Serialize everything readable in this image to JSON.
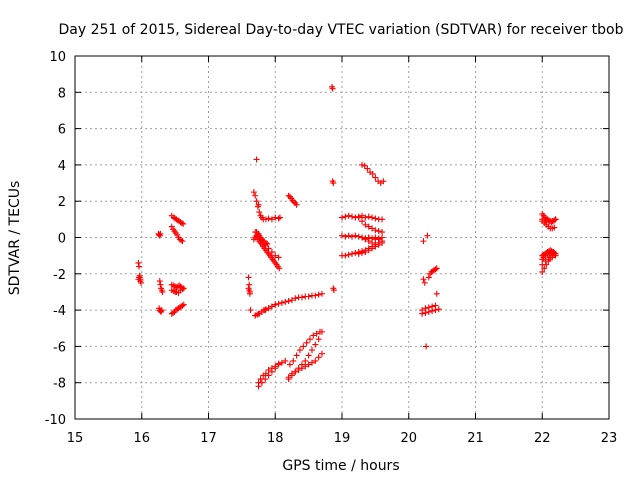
{
  "chart_data": {
    "type": "scatter",
    "title": "Day 251 of 2015, Sidereal Day-to-day VTEC variation (SDTVAR) for receiver tbob",
    "xlabel": "GPS time / hours",
    "ylabel": "SDTVAR / TECUs",
    "xlim": [
      15,
      23
    ],
    "ylim": [
      -10,
      10
    ],
    "xticks": [
      "15",
      "16",
      "17",
      "18",
      "19",
      "20",
      "21",
      "22",
      "23"
    ],
    "yticks": [
      "-10",
      "-8",
      "-6",
      "-4",
      "-2",
      "0",
      "2",
      "4",
      "6",
      "8",
      "10"
    ],
    "grid": true,
    "marker": "+",
    "color": "#ff0000",
    "series": [
      {
        "name": "SDTVAR",
        "x": [
          15.95,
          15.96,
          15.97,
          15.98,
          15.95,
          15.96,
          15.97,
          15.98,
          15.99,
          16.25,
          16.26,
          16.27,
          16.28,
          16.27,
          16.28,
          16.29,
          16.3,
          16.31,
          16.26,
          16.27,
          16.28,
          16.29,
          16.3,
          16.45,
          16.48,
          16.5,
          16.52,
          16.54,
          16.56,
          16.58,
          16.6,
          16.62,
          16.45,
          16.47,
          16.49,
          16.51,
          16.53,
          16.55,
          16.57,
          16.59,
          16.61,
          16.45,
          16.48,
          16.5,
          16.52,
          16.54,
          16.56,
          16.58,
          16.6,
          16.45,
          16.47,
          16.49,
          16.51,
          16.53,
          16.55,
          16.57,
          16.59,
          16.61,
          16.63,
          16.45,
          16.48,
          16.5,
          16.52,
          16.55,
          16.58,
          16.61,
          16.63,
          17.6,
          17.61,
          17.62,
          17.6,
          17.61,
          17.62,
          17.63,
          17.68,
          17.7,
          17.72,
          17.74,
          17.76,
          17.78,
          17.8,
          17.82,
          17.86,
          17.9,
          17.95,
          18.0,
          18.05,
          18.07,
          17.68,
          17.7,
          17.72,
          17.74,
          17.76,
          17.78,
          17.8,
          17.83,
          17.86,
          17.88,
          17.72,
          17.74,
          17.76,
          17.78,
          17.8,
          17.82,
          17.75,
          17.8,
          17.85,
          17.9,
          17.95,
          18.0,
          18.05,
          17.7,
          17.75,
          17.8,
          17.85,
          17.9,
          17.95,
          18.0,
          18.05,
          18.1,
          18.15,
          18.2,
          18.25,
          17.7,
          17.73,
          17.76,
          17.8,
          17.83,
          17.86,
          17.9,
          17.95,
          18.0,
          17.75,
          17.8,
          17.85,
          17.9,
          17.95,
          18.0,
          18.05,
          18.1,
          18.15,
          17.75,
          17.78,
          17.82,
          17.86,
          17.9,
          17.95,
          18.0,
          18.05,
          17.72,
          17.75,
          17.7,
          17.72,
          17.74,
          17.76,
          17.78,
          17.8,
          17.82,
          17.84,
          17.86,
          17.88,
          17.9,
          17.92,
          17.94,
          17.96,
          17.98,
          18.0,
          18.02,
          18.04,
          18.06,
          18.2,
          18.22,
          18.24,
          18.26,
          18.28,
          18.3,
          18.32,
          18.3,
          18.35,
          18.4,
          18.45,
          18.5,
          18.55,
          18.6,
          18.65,
          18.7,
          18.2,
          18.25,
          18.3,
          18.35,
          18.4,
          18.45,
          18.5,
          18.55,
          18.6,
          18.65,
          18.7,
          18.2,
          18.25,
          18.3,
          18.35,
          18.4,
          18.45,
          18.5,
          18.55,
          18.6,
          18.65,
          18.7,
          18.22,
          18.27,
          18.32,
          18.37,
          18.42,
          18.47,
          18.52,
          18.57,
          18.62,
          18.67,
          18.85,
          18.86,
          18.86,
          18.87,
          18.87,
          18.88,
          19.0,
          19.05,
          19.1,
          19.15,
          19.2,
          19.25,
          19.3,
          19.35,
          19.4,
          19.45,
          19.5,
          19.55,
          19.6,
          19.0,
          19.05,
          19.1,
          19.15,
          19.2,
          19.25,
          19.3,
          19.35,
          19.4,
          19.45,
          19.5,
          19.55,
          19.6,
          19.25,
          19.3,
          19.35,
          19.4,
          19.45,
          19.5,
          19.55,
          19.6,
          19.3,
          19.35,
          19.4,
          19.45,
          19.5,
          19.55,
          19.6,
          19.3,
          19.35,
          19.4,
          19.45,
          19.5,
          19.55,
          19.6,
          19.0,
          19.05,
          19.1,
          19.15,
          19.2,
          19.25,
          19.3,
          19.35,
          19.4,
          19.45,
          19.5,
          19.55,
          19.25,
          19.3,
          19.35,
          19.4,
          19.45,
          19.5,
          19.55,
          19.6,
          19.3,
          19.34,
          19.38,
          19.42,
          19.46,
          19.5,
          19.54,
          19.58,
          19.62,
          20.22,
          20.28,
          20.22,
          20.24,
          20.3,
          20.32,
          20.34,
          20.36,
          20.38,
          20.4,
          20.42,
          20.2,
          20.25,
          20.3,
          20.35,
          20.4,
          20.2,
          20.25,
          20.3,
          20.35,
          20.4,
          20.45,
          20.42,
          20.26,
          22.0,
          22.02,
          22.04,
          22.06,
          22.08,
          22.1,
          22.12,
          22.14,
          22.16,
          22.18,
          22.2,
          22.0,
          22.03,
          22.06,
          22.09,
          22.12,
          22.15,
          22.18,
          22.0,
          22.05,
          22.1,
          22.15,
          22.2,
          22.0,
          22.02,
          22.04,
          22.06,
          22.08,
          22.1,
          22.12,
          22.14,
          22.16,
          22.18,
          22.2,
          22.0,
          22.03,
          22.06,
          22.09,
          22.12,
          22.15,
          22.18,
          22.0,
          22.05,
          22.1,
          22.15,
          22.2,
          22.0,
          22.02,
          22.05,
          22.08,
          22.11,
          22.14,
          22.17
        ],
        "y": [
          -1.4,
          -1.6,
          -2.2,
          -2.4,
          -2.3,
          -2.2,
          -2.1,
          -2.3,
          -2.5,
          0.2,
          0.15,
          0.1,
          0.2,
          -2.4,
          -2.6,
          -2.8,
          -2.9,
          -3.0,
          -3.9,
          -4.0,
          -4.05,
          -4.1,
          -4.0,
          1.2,
          1.1,
          1.05,
          1.0,
          0.95,
          0.9,
          0.85,
          0.8,
          0.75,
          0.6,
          0.45,
          0.35,
          0.25,
          0.15,
          0.0,
          -0.1,
          -0.15,
          -0.2,
          -2.6,
          -2.65,
          -2.7,
          -2.75,
          -2.7,
          -2.65,
          -2.7,
          -2.75,
          -4.2,
          -4.15,
          -4.1,
          -4.0,
          -3.95,
          -3.9,
          -3.85,
          -3.8,
          -3.75,
          -3.7,
          -2.9,
          -2.95,
          -3.0,
          -3.0,
          -3.05,
          -2.9,
          -2.85,
          -2.8,
          -2.2,
          -2.6,
          -3.0,
          -2.8,
          -2.9,
          -3.1,
          -4.0,
          2.5,
          2.3,
          2.0,
          1.7,
          1.4,
          1.2,
          1.1,
          1.0,
          1.0,
          1.05,
          1.0,
          1.1,
          1.05,
          1.1,
          -0.1,
          0.0,
          0.1,
          0.05,
          0.0,
          -0.1,
          -0.15,
          -0.2,
          -0.3,
          -0.35,
          0.3,
          0.2,
          0.1,
          0.0,
          -0.1,
          -0.2,
          0.2,
          -0.1,
          -0.4,
          -0.6,
          -0.8,
          -1.0,
          -1.1,
          -4.3,
          -4.2,
          -4.1,
          -4.0,
          -3.9,
          -3.8,
          -3.7,
          -3.65,
          -3.6,
          -3.55,
          -3.5,
          -3.45,
          -4.3,
          -4.25,
          -4.2,
          -4.1,
          -4.0,
          -3.95,
          -3.9,
          -3.8,
          -3.7,
          -8.2,
          -8.0,
          -7.8,
          -7.6,
          -7.4,
          -7.2,
          -7.0,
          -6.9,
          -6.8,
          -8.0,
          -7.8,
          -7.6,
          -7.5,
          -7.3,
          -7.2,
          -7.1,
          -6.95,
          4.3,
          1.8,
          0.3,
          0.1,
          -0.1,
          -0.2,
          -0.3,
          -0.4,
          -0.5,
          -0.6,
          -0.7,
          -0.8,
          -0.9,
          -1.0,
          -1.1,
          -1.2,
          -1.3,
          -1.4,
          -1.5,
          -1.6,
          -1.7,
          2.3,
          2.25,
          2.15,
          2.05,
          1.95,
          1.9,
          1.8,
          -3.35,
          -3.3,
          -3.3,
          -3.25,
          -3.25,
          -3.2,
          -3.2,
          -3.15,
          -3.1,
          -7.8,
          -7.6,
          -7.4,
          -7.2,
          -7.0,
          -6.8,
          -6.5,
          -6.2,
          -5.9,
          -5.6,
          -5.2,
          -7.7,
          -7.5,
          -7.4,
          -7.3,
          -7.2,
          -7.1,
          -7.0,
          -6.9,
          -6.8,
          -6.6,
          -6.4,
          -7.0,
          -6.8,
          -6.5,
          -6.2,
          -6.0,
          -5.8,
          -5.6,
          -5.4,
          -5.3,
          -5.2,
          8.3,
          8.2,
          3.1,
          3.0,
          -2.8,
          -2.9,
          1.1,
          1.15,
          1.2,
          1.15,
          1.1,
          1.15,
          1.2,
          1.1,
          1.15,
          1.1,
          1.05,
          1.0,
          1.0,
          -1.0,
          -1.0,
          -0.95,
          -0.9,
          -0.85,
          -0.8,
          -0.75,
          -0.7,
          -0.6,
          -0.5,
          -0.4,
          -0.3,
          -0.2,
          1.1,
          0.9,
          0.7,
          0.6,
          0.5,
          0.4,
          0.35,
          0.3,
          0.0,
          -0.1,
          -0.2,
          -0.3,
          -0.4,
          -0.3,
          -0.2,
          0.0,
          -0.05,
          0.0,
          -0.05,
          0.0,
          -0.05,
          0.0,
          0.1,
          0.05,
          0.1,
          0.05,
          0.1,
          0.05,
          0.0,
          -0.05,
          0.0,
          -0.05,
          -0.1,
          -0.1,
          -0.9,
          -0.85,
          -0.8,
          -0.7,
          -0.6,
          -0.5,
          -0.4,
          -0.3,
          4.0,
          3.95,
          3.8,
          3.6,
          3.5,
          3.3,
          3.1,
          3.0,
          3.1,
          -0.2,
          0.1,
          -2.3,
          -2.5,
          -2.2,
          -2.0,
          -1.9,
          -1.85,
          -1.8,
          -1.75,
          -1.7,
          -4.0,
          -3.9,
          -3.85,
          -3.8,
          -3.75,
          -4.2,
          -4.15,
          -4.1,
          -4.05,
          -4.0,
          -3.95,
          -3.1,
          -6.0,
          1.3,
          1.2,
          1.1,
          1.05,
          1.0,
          0.95,
          0.9,
          0.85,
          0.9,
          0.95,
          1.0,
          0.9,
          0.8,
          0.7,
          0.6,
          0.5,
          0.5,
          0.55,
          1.0,
          0.9,
          0.85,
          0.9,
          1.0,
          -1.0,
          -0.95,
          -0.9,
          -0.85,
          -0.8,
          -0.75,
          -0.7,
          -0.75,
          -0.8,
          -0.85,
          -0.9,
          -1.9,
          -1.7,
          -1.5,
          -1.3,
          -1.1,
          -1.0,
          -0.9,
          -1.5,
          -1.3,
          -1.2,
          -1.1,
          -1.0,
          -1.2,
          -1.1,
          -1.0,
          -0.95,
          -0.9,
          -0.85,
          -0.8
        ]
      }
    ]
  }
}
